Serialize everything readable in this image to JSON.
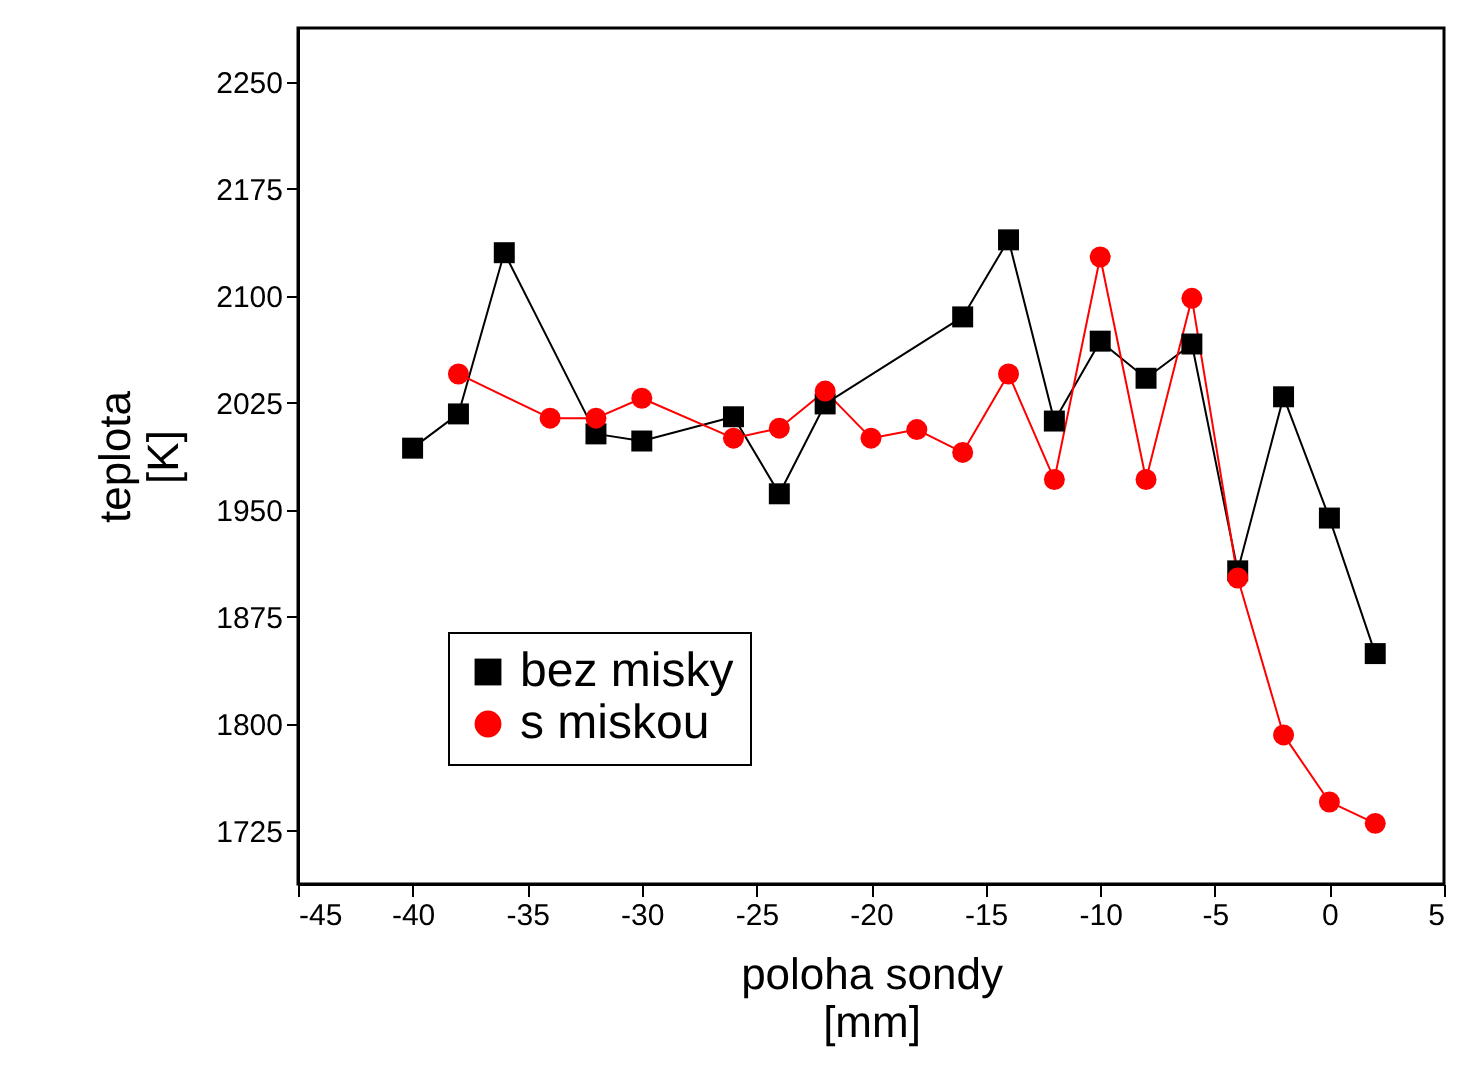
{
  "chart_data": {
    "type": "line",
    "xlabel": "poloha sondy\n[mm]",
    "ylabel": "teplota\n[K]",
    "xlim": [
      -45,
      5
    ],
    "ylim": [
      1687.5,
      2287.5
    ],
    "xticks": [
      -45,
      -40,
      -35,
      -30,
      -25,
      -20,
      -15,
      -10,
      -5,
      0,
      5
    ],
    "yticks": [
      1725,
      1800,
      1875,
      1950,
      2025,
      2100,
      2175,
      2250
    ],
    "grid": false,
    "legend": "bottom left",
    "line_style": "solid",
    "series": [
      {
        "name": "bez misky",
        "color": "#000000",
        "marker": "square",
        "x": [
          -40,
          -38,
          -36,
          -32,
          -30,
          -26,
          -24,
          -22,
          -16,
          -14,
          -12,
          -10,
          -8,
          -6,
          -4,
          -2,
          0,
          2
        ],
        "values": [
          1993,
          2017,
          2130,
          2003,
          1998,
          2015,
          1961,
          2024,
          2085,
          2139,
          2012,
          2068,
          2042,
          2066,
          1907,
          2029,
          1944,
          1849
        ]
      },
      {
        "name": "s miskou",
        "color": "#ff0000",
        "marker": "circle",
        "x": [
          -38,
          -34,
          -32,
          -30,
          -26,
          -24,
          -22,
          -20,
          -18,
          -16,
          -14,
          -12,
          -10,
          -8,
          -6,
          -4,
          -2,
          0,
          2
        ],
        "values": [
          2045,
          2014,
          2014,
          2028,
          2000,
          2007,
          2033,
          2000,
          2006,
          1990,
          2045,
          1971,
          2127,
          1971,
          2098,
          1902,
          1792,
          1745,
          1730
        ]
      }
    ]
  }
}
